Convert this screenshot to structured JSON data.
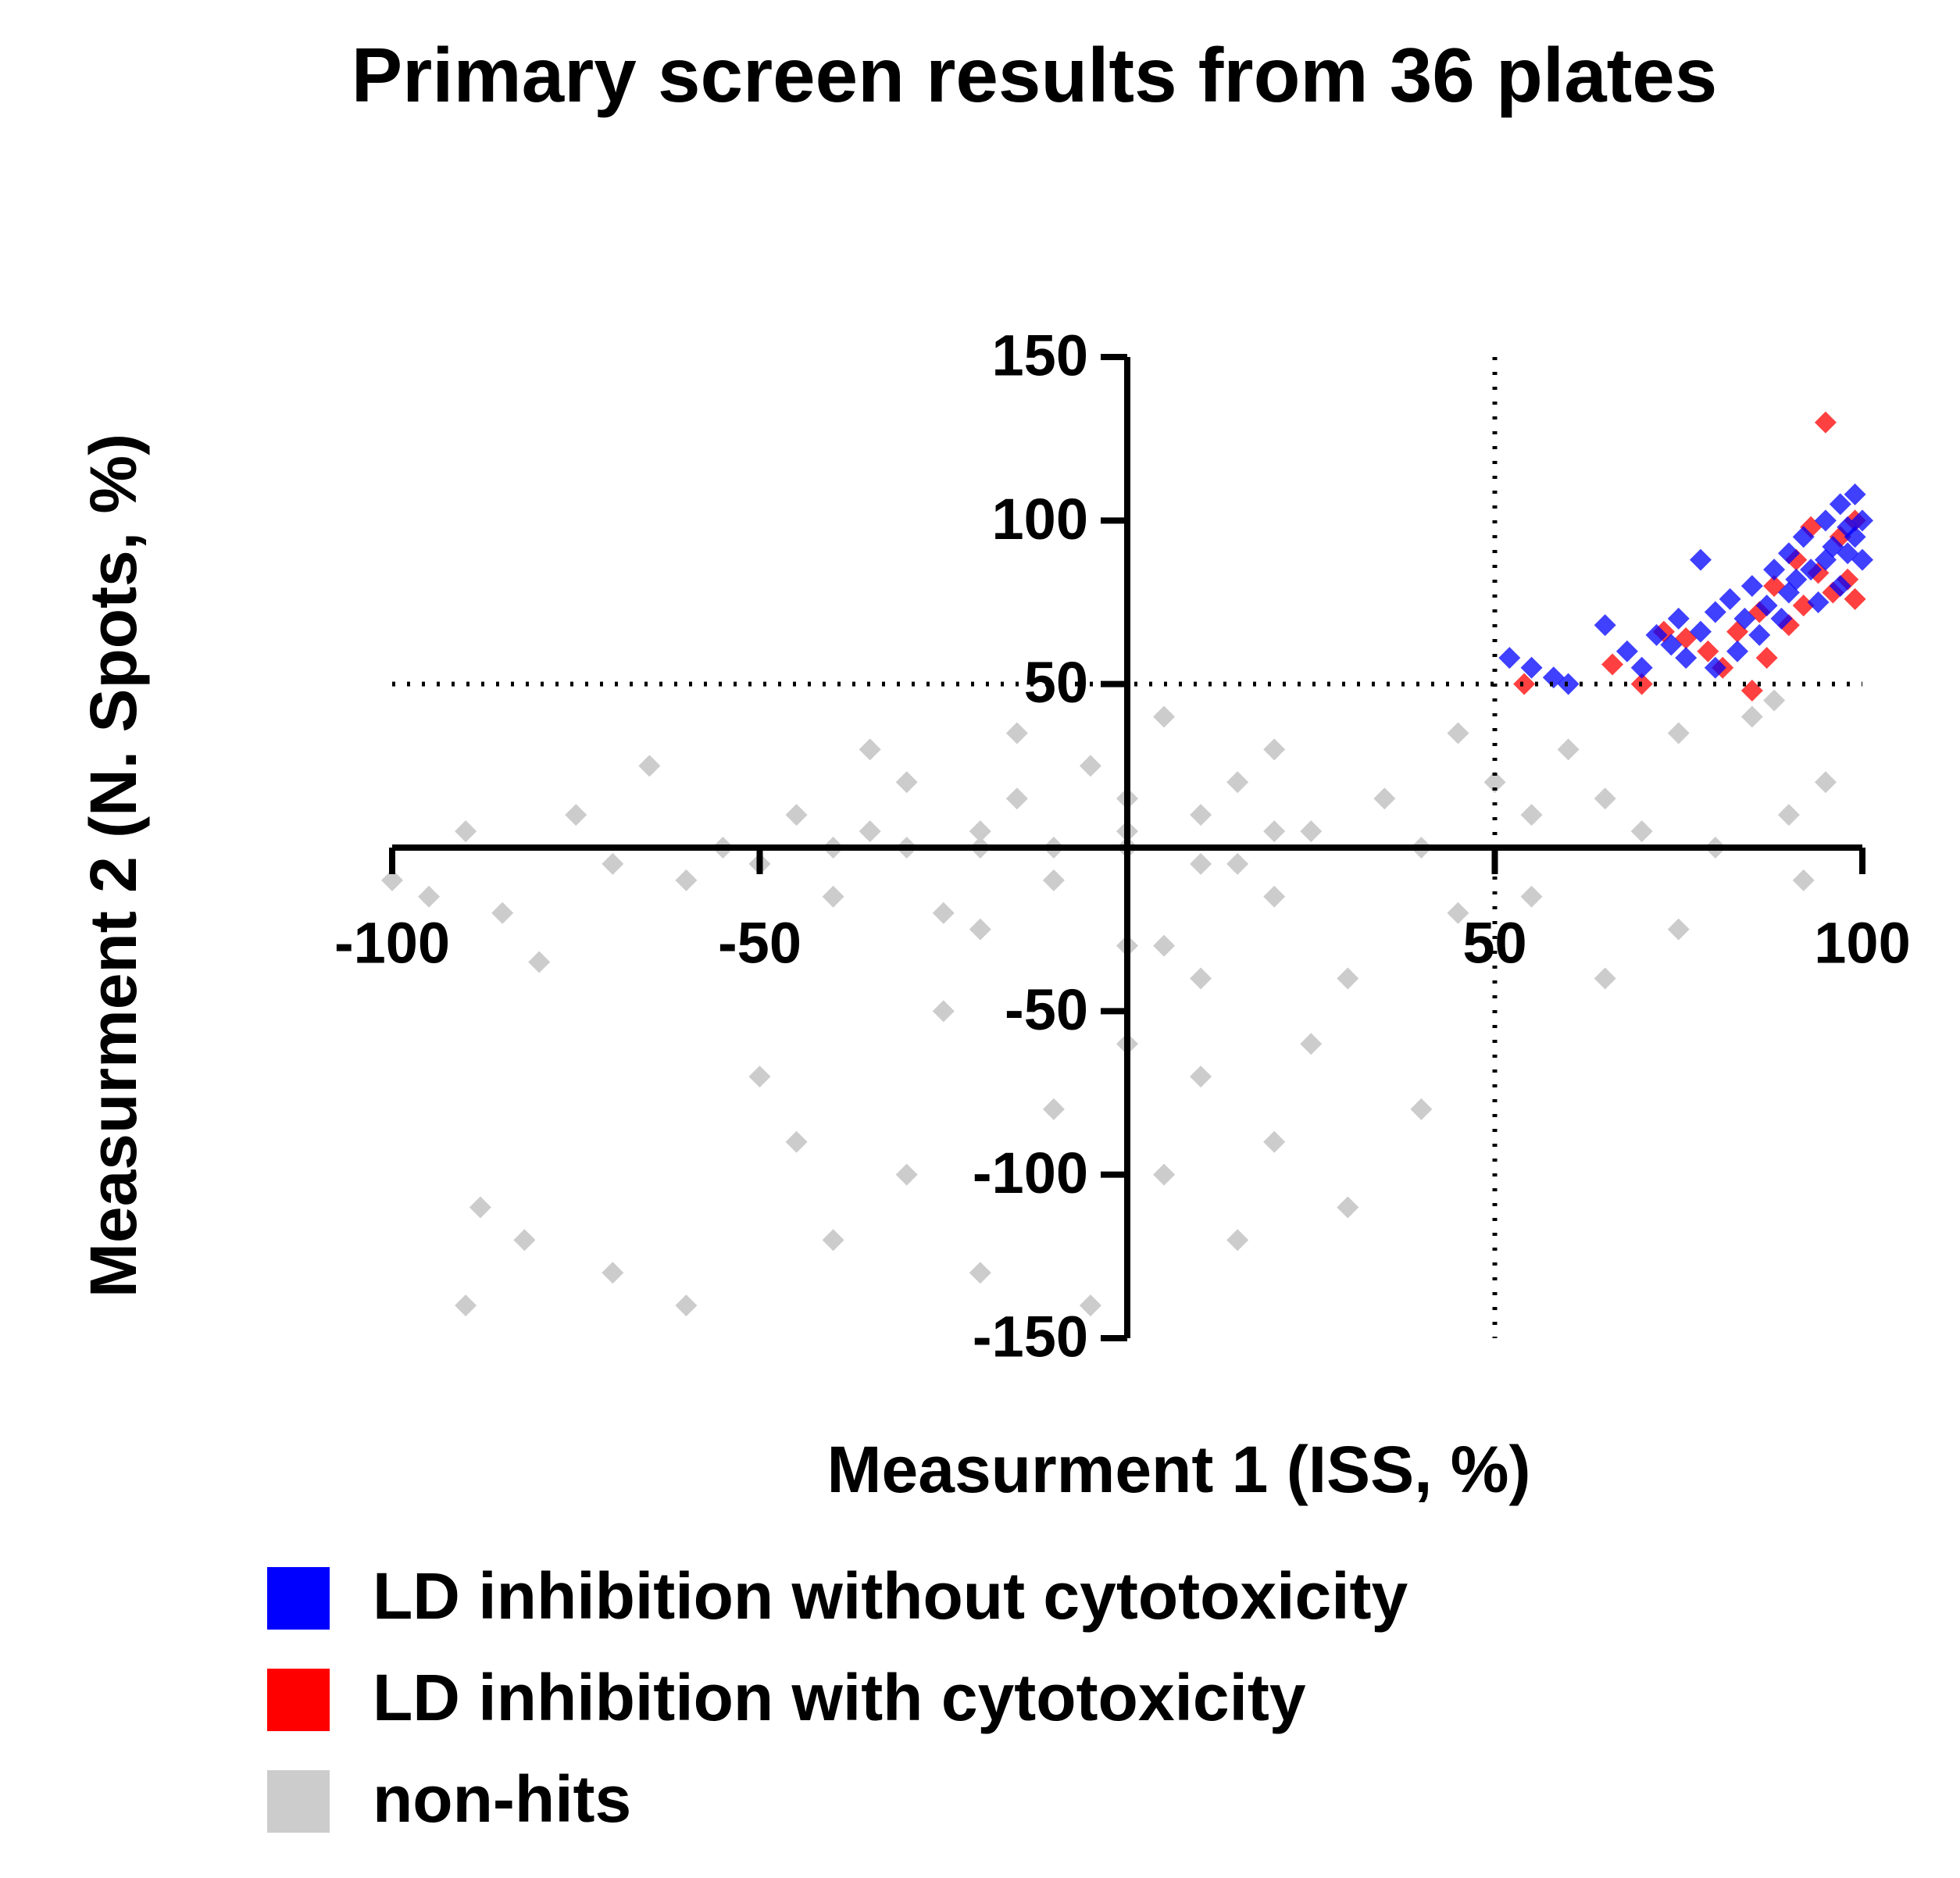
{
  "chart_data": {
    "type": "scatter",
    "title": "Primary screen results from 36 plates",
    "x_label": "Measurment 1 (ISS, %)",
    "y_label": "Measurment 2 (N. Spots, %)",
    "xlim": [
      -100,
      100
    ],
    "ylim": [
      -150,
      150
    ],
    "xticks": [
      -100,
      -50,
      50,
      100
    ],
    "yticks": [
      -150,
      -100,
      -50,
      50,
      100,
      150
    ],
    "vlines": [
      50
    ],
    "hlines": [
      50
    ],
    "series": [
      {
        "name": "LD inhibition without cytotoxicity",
        "color": "#0000ff",
        "x": [
          52,
          55,
          58,
          60,
          65,
          68,
          70,
          72,
          74,
          75,
          76,
          78,
          78,
          80,
          80,
          82,
          83,
          84,
          85,
          86,
          87,
          88,
          89,
          90,
          90,
          91,
          92,
          93,
          94,
          95,
          95,
          96,
          97,
          97,
          98,
          98,
          99,
          99,
          100,
          100
        ],
        "y": [
          58,
          55,
          52,
          50,
          68,
          60,
          55,
          65,
          62,
          70,
          58,
          88,
          66,
          72,
          55,
          76,
          60,
          70,
          80,
          65,
          74,
          85,
          70,
          90,
          78,
          82,
          95,
          85,
          75,
          100,
          88,
          92,
          105,
          80,
          98,
          90,
          108,
          95,
          100,
          88
        ]
      },
      {
        "name": "LD inhibition with cytotoxicity",
        "color": "#ff0000",
        "x": [
          54,
          66,
          70,
          73,
          76,
          79,
          81,
          83,
          85,
          86,
          87,
          88,
          90,
          91,
          92,
          93,
          94,
          95,
          96,
          97,
          98,
          99,
          99
        ],
        "y": [
          50,
          56,
          50,
          66,
          64,
          60,
          55,
          66,
          48,
          72,
          58,
          80,
          68,
          88,
          74,
          98,
          84,
          130,
          78,
          95,
          82,
          76,
          100
        ]
      },
      {
        "name": "non-hits",
        "color": "#cccccc",
        "x": [
          -100,
          -95,
          -90,
          -85,
          -80,
          -75,
          -70,
          -65,
          -60,
          -55,
          -50,
          -45,
          -40,
          -35,
          -30,
          -25,
          -20,
          -15,
          -10,
          -5,
          0,
          5,
          10,
          15,
          20,
          25,
          30,
          35,
          40,
          45,
          50,
          55,
          60,
          65,
          70,
          75,
          80,
          85,
          90,
          95,
          -88,
          -82,
          -70,
          -60,
          -45,
          -40,
          -30,
          -20,
          -10,
          -5,
          0,
          5,
          10,
          15,
          20,
          30,
          40,
          55,
          65,
          75,
          -90,
          -50,
          -25,
          0,
          10,
          25,
          -15,
          5,
          20,
          -35,
          45,
          88,
          92,
          -30,
          -20,
          -10,
          0,
          10,
          20,
          -40,
          0,
          -20,
          15
        ],
        "y": [
          -10,
          -15,
          5,
          -20,
          -35,
          10,
          -5,
          25,
          -10,
          0,
          -5,
          10,
          -15,
          5,
          20,
          -20,
          0,
          15,
          -10,
          25,
          5,
          -30,
          10,
          20,
          -15,
          5,
          -40,
          15,
          0,
          -20,
          20,
          10,
          30,
          15,
          5,
          35,
          0,
          40,
          10,
          20,
          -110,
          -120,
          -130,
          -140,
          -90,
          -120,
          -100,
          -130,
          -80,
          -140,
          -60,
          -100,
          -70,
          -120,
          -90,
          -110,
          -80,
          -15,
          -40,
          -25,
          -140,
          -70,
          -50,
          -30,
          -40,
          -60,
          35,
          40,
          30,
          30,
          35,
          45,
          -10,
          0,
          5,
          0,
          0,
          -5,
          5,
          0,
          15,
          -25,
          -5
        ]
      }
    ]
  }
}
